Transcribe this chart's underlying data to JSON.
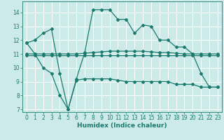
{
  "title": "",
  "xlabel": "Humidex (Indice chaleur)",
  "xlim": [
    -0.5,
    23.5
  ],
  "ylim": [
    6.8,
    14.8
  ],
  "yticks": [
    7,
    8,
    9,
    10,
    11,
    12,
    13,
    14
  ],
  "xticks": [
    0,
    1,
    2,
    3,
    4,
    5,
    6,
    7,
    8,
    9,
    10,
    11,
    12,
    13,
    14,
    15,
    16,
    17,
    18,
    19,
    20,
    21,
    22,
    23
  ],
  "background_color": "#cceae8",
  "grid_color": "#ffffff",
  "line_color": "#1a7a6e",
  "lines": [
    {
      "x": [
        0,
        1,
        2,
        3,
        4,
        5,
        6,
        7,
        8,
        9,
        10,
        11,
        12,
        13,
        14,
        15,
        16,
        17,
        18,
        19,
        20,
        21,
        22,
        23
      ],
      "y": [
        11.8,
        12.0,
        12.5,
        12.8,
        9.6,
        7.0,
        9.2,
        11.1,
        14.2,
        14.2,
        14.2,
        13.5,
        13.5,
        12.5,
        13.1,
        13.0,
        12.0,
        12.0,
        11.5,
        11.5,
        11.0,
        9.6,
        8.6,
        8.6
      ]
    },
    {
      "x": [
        0,
        1,
        2,
        3,
        4,
        5,
        6,
        7,
        8,
        9,
        10,
        11,
        12,
        13,
        14,
        15,
        16,
        17,
        18,
        19,
        20,
        21,
        22,
        23
      ],
      "y": [
        11.0,
        11.0,
        11.0,
        11.0,
        11.0,
        11.0,
        11.0,
        11.05,
        11.1,
        11.15,
        11.2,
        11.2,
        11.2,
        11.2,
        11.2,
        11.15,
        11.1,
        11.1,
        11.05,
        11.0,
        11.0,
        11.0,
        11.0,
        11.0
      ]
    },
    {
      "x": [
        0,
        1,
        2,
        3,
        4,
        5,
        6,
        7,
        8,
        9,
        10,
        11,
        12,
        13,
        14,
        15,
        16,
        17,
        18,
        19,
        20,
        21,
        22,
        23
      ],
      "y": [
        10.9,
        10.9,
        10.9,
        10.9,
        10.9,
        10.9,
        10.9,
        10.9,
        10.9,
        10.9,
        10.9,
        10.9,
        10.9,
        10.9,
        10.9,
        10.9,
        10.9,
        10.9,
        10.9,
        10.9,
        10.9,
        10.9,
        10.9,
        10.9
      ]
    },
    {
      "x": [
        0,
        1,
        2,
        3,
        4,
        5,
        6,
        7,
        8,
        9,
        10,
        11,
        12,
        13,
        14,
        15,
        16,
        17,
        18,
        19,
        20,
        21,
        22,
        23
      ],
      "y": [
        11.8,
        11.0,
        10.0,
        9.6,
        8.0,
        7.0,
        9.1,
        9.2,
        9.2,
        9.2,
        9.2,
        9.1,
        9.0,
        9.0,
        9.0,
        9.0,
        9.0,
        9.0,
        8.8,
        8.8,
        8.8,
        8.6,
        8.6,
        8.6
      ]
    }
  ]
}
